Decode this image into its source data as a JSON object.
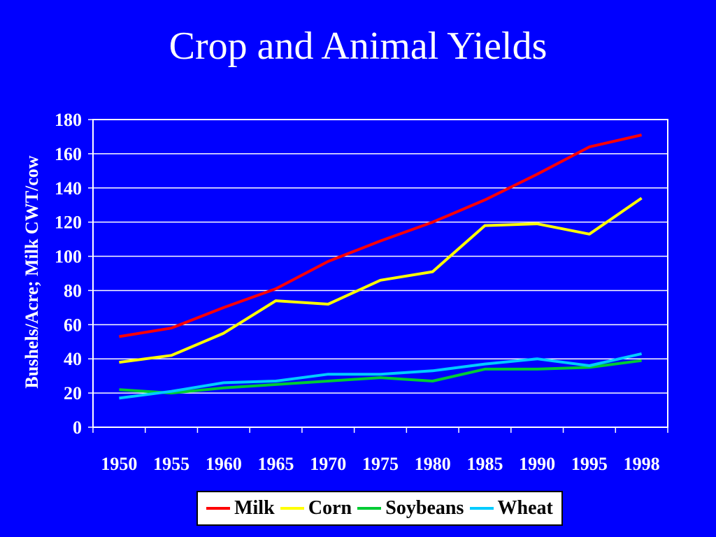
{
  "slide": {
    "title": "Crop and Animal Yields",
    "background": "#0000ff"
  },
  "chart_data": {
    "type": "line",
    "title": "",
    "ylabel": "Bushels/Acre; Milk CWT/cow",
    "xlabel": "",
    "categories": [
      "1950",
      "1955",
      "1960",
      "1965",
      "1970",
      "1975",
      "1980",
      "1985",
      "1990",
      "1995",
      "1998"
    ],
    "ylim": [
      0,
      180
    ],
    "yticks": [
      "0",
      "20",
      "40",
      "60",
      "80",
      "100",
      "120",
      "140",
      "160",
      "180"
    ],
    "grid": true,
    "legend": "bottom",
    "series": [
      {
        "name": "Milk",
        "color": "#ff0000",
        "values": [
          53,
          58,
          70,
          81,
          97,
          109,
          120,
          133,
          148,
          164,
          171
        ]
      },
      {
        "name": "Corn",
        "color": "#ffff00",
        "values": [
          38,
          42,
          55,
          74,
          72,
          86,
          91,
          118,
          119,
          113,
          134
        ]
      },
      {
        "name": "Soybeans",
        "color": "#00cc33",
        "values": [
          22,
          20,
          23,
          25,
          27,
          29,
          27,
          34,
          34,
          35,
          39
        ]
      },
      {
        "name": "Wheat",
        "color": "#00ccff",
        "values": [
          17,
          21,
          26,
          27,
          31,
          31,
          33,
          37,
          40,
          36,
          43
        ]
      }
    ]
  }
}
